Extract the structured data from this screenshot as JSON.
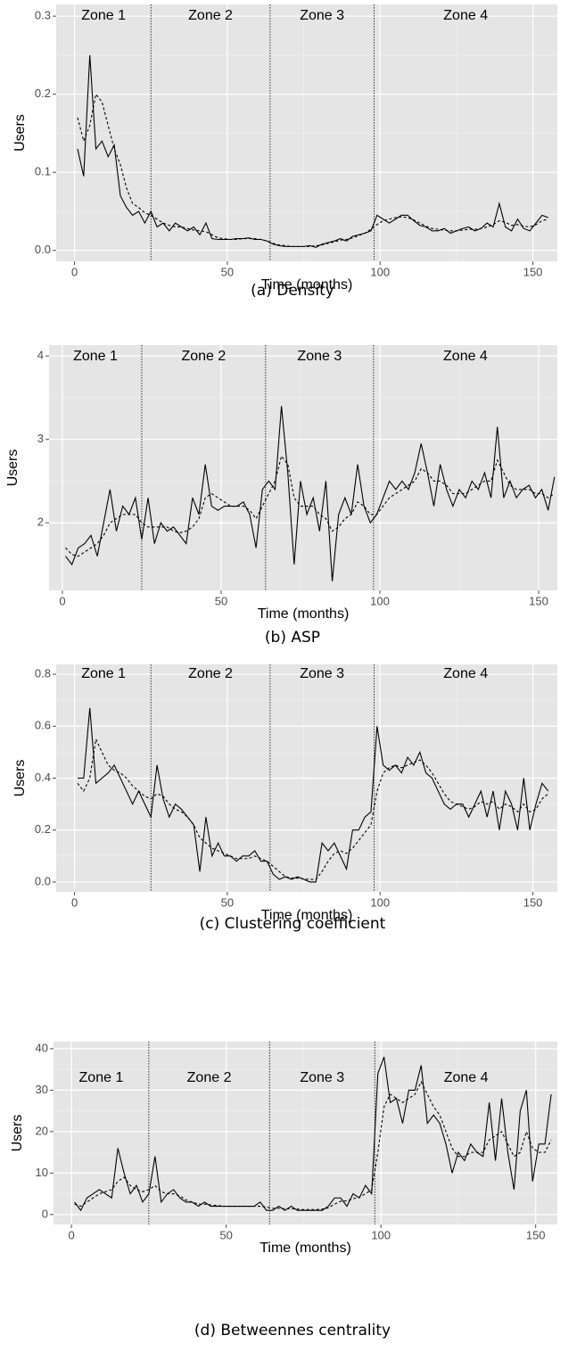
{
  "chart_data": [
    {
      "type": "line",
      "caption": "(a)  Density",
      "xlabel": "Time (months)",
      "ylabel": "Users",
      "zones": [
        "Zone 1",
        "Zone 2",
        "Zone 3",
        "Zone 4"
      ],
      "zone_bounds": [
        25,
        64,
        98
      ],
      "xlim": [
        -6,
        158
      ],
      "xticks": [
        0,
        50,
        100,
        150
      ],
      "ylim": [
        -0.014,
        0.315
      ],
      "yticks": [
        {
          "value": 0,
          "label": "0.0"
        },
        0.1,
        0.2,
        0.3
      ],
      "grid": true,
      "x": [
        1,
        3,
        5,
        7,
        9,
        11,
        13,
        15,
        17,
        19,
        21,
        23,
        25,
        27,
        29,
        31,
        33,
        35,
        37,
        39,
        41,
        43,
        45,
        47,
        49,
        51,
        53,
        55,
        57,
        59,
        61,
        63,
        65,
        67,
        69,
        71,
        73,
        75,
        77,
        79,
        81,
        83,
        85,
        87,
        89,
        91,
        93,
        95,
        97,
        99,
        101,
        103,
        105,
        107,
        109,
        111,
        113,
        115,
        117,
        119,
        121,
        123,
        125,
        127,
        129,
        131,
        133,
        135,
        137,
        139,
        141,
        143,
        145,
        147,
        149,
        151,
        153,
        155
      ],
      "series": [
        {
          "color": "#000000",
          "dash": "solid",
          "values": [
            0.13,
            0.095,
            0.25,
            0.13,
            0.14,
            0.12,
            0.135,
            0.07,
            0.055,
            0.045,
            0.05,
            0.035,
            0.05,
            0.03,
            0.035,
            0.025,
            0.035,
            0.03,
            0.025,
            0.03,
            0.02,
            0.035,
            0.015,
            0.014,
            0.014,
            0.014,
            0.015,
            0.015,
            0.016,
            0.014,
            0.014,
            0.012,
            0.008,
            0.006,
            0.005,
            0.005,
            0.005,
            0.005,
            0.006,
            0.004,
            0.008,
            0.01,
            0.012,
            0.015,
            0.012,
            0.018,
            0.02,
            0.022,
            0.025,
            0.045,
            0.04,
            0.035,
            0.04,
            0.045,
            0.045,
            0.038,
            0.032,
            0.03,
            0.025,
            0.025,
            0.028,
            0.022,
            0.025,
            0.028,
            0.03,
            0.025,
            0.028,
            0.035,
            0.03,
            0.06,
            0.03,
            0.025,
            0.04,
            0.028,
            0.025,
            0.035,
            0.045,
            0.042
          ]
        },
        {
          "color": "#000000",
          "dash": "dashed",
          "values": [
            0.17,
            0.14,
            0.16,
            0.2,
            0.19,
            0.16,
            0.13,
            0.11,
            0.08,
            0.06,
            0.055,
            0.048,
            0.045,
            0.04,
            0.035,
            0.032,
            0.03,
            0.03,
            0.028,
            0.026,
            0.025,
            0.024,
            0.02,
            0.016,
            0.015,
            0.014,
            0.014,
            0.015,
            0.015,
            0.015,
            0.014,
            0.012,
            0.009,
            0.007,
            0.006,
            0.005,
            0.005,
            0.005,
            0.005,
            0.006,
            0.007,
            0.009,
            0.011,
            0.013,
            0.014,
            0.016,
            0.019,
            0.022,
            0.027,
            0.033,
            0.038,
            0.04,
            0.042,
            0.043,
            0.042,
            0.039,
            0.035,
            0.031,
            0.028,
            0.027,
            0.026,
            0.025,
            0.025,
            0.026,
            0.027,
            0.027,
            0.028,
            0.03,
            0.033,
            0.038,
            0.036,
            0.032,
            0.033,
            0.031,
            0.03,
            0.033,
            0.038,
            0.04
          ]
        }
      ]
    },
    {
      "type": "line",
      "caption": "(b)  ASP",
      "xlabel": "Time (months)",
      "ylabel": "Users",
      "zones": [
        "Zone 1",
        "Zone 2",
        "Zone 3",
        "Zone 4"
      ],
      "zone_bounds": [
        25,
        64,
        98
      ],
      "xlim": [
        -4.2,
        155.9
      ],
      "xticks": [
        0,
        50,
        100,
        150
      ],
      "ylim": [
        1.19,
        4.13
      ],
      "yticks": [
        2,
        3,
        4
      ],
      "grid": true,
      "x": [
        1,
        3,
        5,
        7,
        9,
        11,
        13,
        15,
        17,
        19,
        21,
        23,
        25,
        27,
        29,
        31,
        33,
        35,
        37,
        39,
        41,
        43,
        45,
        47,
        49,
        51,
        53,
        55,
        57,
        59,
        61,
        63,
        65,
        67,
        69,
        71,
        73,
        75,
        77,
        79,
        81,
        83,
        85,
        87,
        89,
        91,
        93,
        95,
        97,
        99,
        101,
        103,
        105,
        107,
        109,
        111,
        113,
        115,
        117,
        119,
        121,
        123,
        125,
        127,
        129,
        131,
        133,
        135,
        137,
        139,
        141,
        143,
        145,
        147,
        149,
        151,
        153,
        155
      ],
      "series": [
        {
          "color": "#000000",
          "dash": "solid",
          "values": [
            1.6,
            1.5,
            1.7,
            1.75,
            1.85,
            1.6,
            2.0,
            2.4,
            1.9,
            2.2,
            2.1,
            2.3,
            1.8,
            2.3,
            1.75,
            2.0,
            1.9,
            1.95,
            1.85,
            1.75,
            2.3,
            2.1,
            2.7,
            2.2,
            2.15,
            2.2,
            2.2,
            2.2,
            2.25,
            2.1,
            1.7,
            2.4,
            2.5,
            2.4,
            3.4,
            2.6,
            1.5,
            2.5,
            2.1,
            2.3,
            1.9,
            2.5,
            1.3,
            2.1,
            2.3,
            2.1,
            2.7,
            2.2,
            2.0,
            2.1,
            2.3,
            2.5,
            2.4,
            2.5,
            2.4,
            2.6,
            2.95,
            2.6,
            2.2,
            2.7,
            2.4,
            2.2,
            2.4,
            2.3,
            2.5,
            2.4,
            2.6,
            2.3,
            3.15,
            2.3,
            2.5,
            2.3,
            2.4,
            2.45,
            2.3,
            2.4,
            2.15,
            2.55
          ]
        },
        {
          "color": "#000000",
          "dash": "dashed",
          "values": [
            1.7,
            1.62,
            1.6,
            1.65,
            1.7,
            1.75,
            1.85,
            2.0,
            2.05,
            2.1,
            2.1,
            2.1,
            2.0,
            1.95,
            1.95,
            1.95,
            1.95,
            1.9,
            1.88,
            1.9,
            1.95,
            2.05,
            2.3,
            2.35,
            2.3,
            2.25,
            2.2,
            2.2,
            2.2,
            2.15,
            2.05,
            2.2,
            2.35,
            2.5,
            2.8,
            2.7,
            2.3,
            2.2,
            2.2,
            2.2,
            2.1,
            2.05,
            1.9,
            1.95,
            2.05,
            2.1,
            2.25,
            2.2,
            2.1,
            2.1,
            2.2,
            2.3,
            2.35,
            2.4,
            2.45,
            2.5,
            2.65,
            2.6,
            2.5,
            2.5,
            2.45,
            2.35,
            2.35,
            2.35,
            2.4,
            2.45,
            2.5,
            2.5,
            2.75,
            2.6,
            2.45,
            2.4,
            2.4,
            2.4,
            2.35,
            2.35,
            2.3,
            2.35
          ]
        }
      ]
    },
    {
      "type": "line",
      "caption": "(c)  Clustering coefficient",
      "xlabel": "Time (months)",
      "ylabel": "Users",
      "zones": [
        "Zone 1",
        "Zone 2",
        "Zone 3",
        "Zone 4"
      ],
      "zone_bounds": [
        25,
        64,
        98
      ],
      "xlim": [
        -6,
        158
      ],
      "xticks": [
        0,
        50,
        100,
        150
      ],
      "ylim": [
        -0.038,
        0.838
      ],
      "yticks": [
        {
          "value": 0,
          "label": "0.0"
        },
        0.2,
        0.4,
        0.6,
        0.8
      ],
      "grid": true,
      "x": [
        1,
        3,
        5,
        7,
        9,
        11,
        13,
        15,
        17,
        19,
        21,
        23,
        25,
        27,
        29,
        31,
        33,
        35,
        37,
        39,
        41,
        43,
        45,
        47,
        49,
        51,
        53,
        55,
        57,
        59,
        61,
        63,
        65,
        67,
        69,
        71,
        73,
        75,
        77,
        79,
        81,
        83,
        85,
        87,
        89,
        91,
        93,
        95,
        97,
        99,
        101,
        103,
        105,
        107,
        109,
        111,
        113,
        115,
        117,
        119,
        121,
        123,
        125,
        127,
        129,
        131,
        133,
        135,
        137,
        139,
        141,
        143,
        145,
        147,
        149,
        151,
        153,
        155
      ],
      "series": [
        {
          "color": "#000000",
          "dash": "solid",
          "values": [
            0.4,
            0.4,
            0.67,
            0.38,
            0.4,
            0.42,
            0.45,
            0.4,
            0.35,
            0.3,
            0.35,
            0.3,
            0.25,
            0.45,
            0.32,
            0.25,
            0.3,
            0.28,
            0.25,
            0.22,
            0.04,
            0.25,
            0.1,
            0.15,
            0.1,
            0.1,
            0.08,
            0.1,
            0.1,
            0.12,
            0.08,
            0.08,
            0.03,
            0.01,
            0.02,
            0.01,
            0.02,
            0.01,
            0.0,
            0.0,
            0.15,
            0.12,
            0.15,
            0.1,
            0.05,
            0.2,
            0.2,
            0.25,
            0.27,
            0.6,
            0.45,
            0.43,
            0.45,
            0.42,
            0.48,
            0.45,
            0.5,
            0.42,
            0.4,
            0.35,
            0.3,
            0.28,
            0.3,
            0.3,
            0.25,
            0.3,
            0.35,
            0.25,
            0.35,
            0.2,
            0.35,
            0.3,
            0.2,
            0.4,
            0.2,
            0.3,
            0.38,
            0.35
          ]
        },
        {
          "color": "#000000",
          "dash": "dashed",
          "values": [
            0.38,
            0.35,
            0.4,
            0.55,
            0.5,
            0.45,
            0.43,
            0.42,
            0.4,
            0.37,
            0.35,
            0.33,
            0.32,
            0.34,
            0.33,
            0.3,
            0.28,
            0.27,
            0.25,
            0.22,
            0.17,
            0.15,
            0.13,
            0.12,
            0.11,
            0.1,
            0.09,
            0.09,
            0.09,
            0.1,
            0.09,
            0.08,
            0.06,
            0.04,
            0.02,
            0.015,
            0.015,
            0.012,
            0.01,
            0.01,
            0.04,
            0.08,
            0.11,
            0.12,
            0.11,
            0.13,
            0.16,
            0.19,
            0.22,
            0.35,
            0.42,
            0.44,
            0.45,
            0.44,
            0.45,
            0.46,
            0.47,
            0.45,
            0.42,
            0.38,
            0.34,
            0.31,
            0.3,
            0.29,
            0.28,
            0.29,
            0.31,
            0.3,
            0.31,
            0.28,
            0.3,
            0.29,
            0.27,
            0.3,
            0.27,
            0.28,
            0.32,
            0.34
          ]
        }
      ]
    },
    {
      "type": "line",
      "caption": "(d) Betweennes centrality",
      "xlabel": "Time (months)",
      "ylabel": "Users",
      "zones": [
        "Zone 1",
        "Zone 2",
        "Zone 3",
        "Zone 4"
      ],
      "zone_bounds": [
        25,
        64,
        98
      ],
      "xlim": [
        -5.8,
        157
      ],
      "xticks": [
        0,
        50,
        100,
        150
      ],
      "ylim": [
        -2.4,
        41.7
      ],
      "yticks": [
        0,
        10,
        20,
        30,
        40
      ],
      "grid": true,
      "x": [
        1,
        3,
        5,
        7,
        9,
        11,
        13,
        15,
        17,
        19,
        21,
        23,
        25,
        27,
        29,
        31,
        33,
        35,
        37,
        39,
        41,
        43,
        45,
        47,
        49,
        51,
        53,
        55,
        57,
        59,
        61,
        63,
        65,
        67,
        69,
        71,
        73,
        75,
        77,
        79,
        81,
        83,
        85,
        87,
        89,
        91,
        93,
        95,
        97,
        99,
        101,
        103,
        105,
        107,
        109,
        111,
        113,
        115,
        117,
        119,
        121,
        123,
        125,
        127,
        129,
        131,
        133,
        135,
        137,
        139,
        141,
        143,
        145,
        147,
        149,
        151,
        153,
        155
      ],
      "series": [
        {
          "color": "#000000",
          "dash": "solid",
          "values": [
            3,
            1,
            4,
            5,
            6,
            5,
            4,
            16,
            10,
            5,
            7,
            3,
            5,
            14,
            3,
            5,
            6,
            4,
            3,
            3,
            2,
            3,
            2,
            2,
            2,
            2,
            2,
            2,
            2,
            2,
            3,
            1,
            1,
            2,
            1,
            2,
            1,
            1,
            1,
            1,
            1,
            2,
            4,
            4,
            2,
            5,
            4,
            7,
            5,
            34,
            38,
            27,
            28,
            22,
            30,
            30,
            36,
            22,
            24,
            22,
            17,
            10,
            15,
            13,
            17,
            15,
            14,
            27,
            13,
            28,
            15,
            6,
            25,
            30,
            8,
            17,
            17,
            29
          ]
        },
        {
          "color": "#000000",
          "dash": "dashed",
          "values": [
            2.5,
            2,
            3,
            4,
            5,
            5.5,
            6,
            8,
            9,
            7,
            6,
            5.5,
            6,
            7,
            5.5,
            5,
            5,
            4.5,
            3.5,
            3,
            2.5,
            2.5,
            2.3,
            2.2,
            2,
            2,
            2,
            2,
            2,
            2,
            2,
            1.8,
            1.5,
            1.5,
            1.4,
            1.4,
            1.3,
            1.2,
            1.2,
            1.2,
            1.3,
            1.6,
            2.5,
            3.2,
            3.3,
            3.8,
            4.2,
            5,
            6,
            15,
            26,
            29,
            28,
            27,
            28,
            29,
            32,
            29,
            26,
            24,
            20,
            16,
            14,
            14,
            15,
            15,
            15,
            18,
            19,
            20,
            17,
            14,
            15,
            20,
            16,
            15,
            15,
            18
          ]
        }
      ]
    }
  ]
}
